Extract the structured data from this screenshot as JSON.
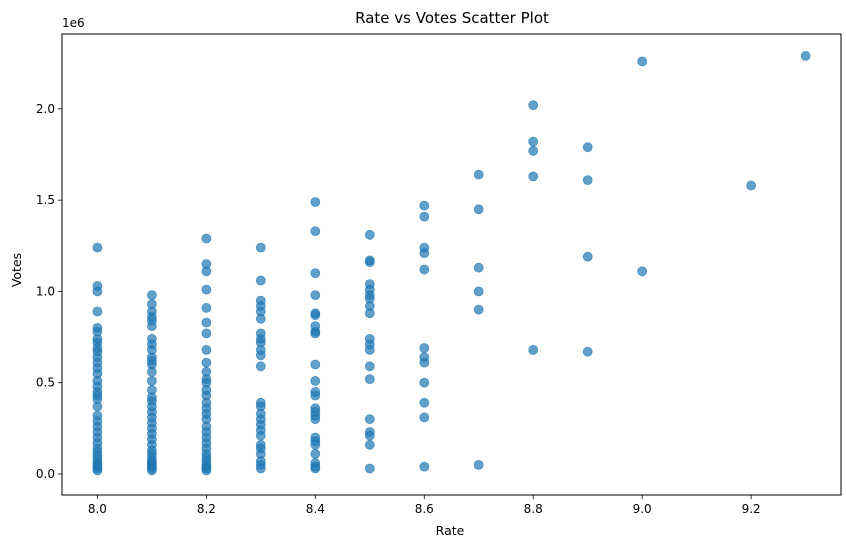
{
  "chart_data": {
    "type": "scatter",
    "title": "Rate vs Votes Scatter Plot",
    "xlabel": "Rate",
    "ylabel": "Votes",
    "y_scale_label": "1e6",
    "xlim": [
      7.935,
      9.365
    ],
    "ylim": [
      -0.115,
      2.41
    ],
    "x_ticks": [
      8.0,
      8.2,
      8.4,
      8.6,
      8.8,
      9.0,
      9.2
    ],
    "x_tick_labels": [
      "8.0",
      "8.2",
      "8.4",
      "8.6",
      "8.8",
      "9.0",
      "9.2"
    ],
    "y_ticks": [
      0.0,
      0.5,
      1.0,
      1.5,
      2.0
    ],
    "y_tick_labels": [
      "0.0",
      "0.5",
      "1.0",
      "1.5",
      "2.0"
    ],
    "grid": false,
    "marker_color": "#1f77b4",
    "marker_alpha": 0.7,
    "points": [
      [
        8.0,
        1.24
      ],
      [
        8.0,
        1.03
      ],
      [
        8.0,
        1.0
      ],
      [
        8.0,
        0.89
      ],
      [
        8.0,
        0.8
      ],
      [
        8.0,
        0.78
      ],
      [
        8.0,
        0.74
      ],
      [
        8.0,
        0.72
      ],
      [
        8.0,
        0.69
      ],
      [
        8.0,
        0.67
      ],
      [
        8.0,
        0.64
      ],
      [
        8.0,
        0.61
      ],
      [
        8.0,
        0.58
      ],
      [
        8.0,
        0.55
      ],
      [
        8.0,
        0.51
      ],
      [
        8.0,
        0.48
      ],
      [
        8.0,
        0.45
      ],
      [
        8.0,
        0.43
      ],
      [
        8.0,
        0.41
      ],
      [
        8.0,
        0.37
      ],
      [
        8.0,
        0.32
      ],
      [
        8.0,
        0.29
      ],
      [
        8.0,
        0.26
      ],
      [
        8.0,
        0.23
      ],
      [
        8.0,
        0.2
      ],
      [
        8.0,
        0.17
      ],
      [
        8.0,
        0.14
      ],
      [
        8.0,
        0.12
      ],
      [
        8.0,
        0.1
      ],
      [
        8.0,
        0.08
      ],
      [
        8.0,
        0.06
      ],
      [
        8.0,
        0.05
      ],
      [
        8.0,
        0.04
      ],
      [
        8.0,
        0.03
      ],
      [
        8.0,
        0.02
      ],
      [
        8.1,
        0.98
      ],
      [
        8.1,
        0.93
      ],
      [
        8.1,
        0.89
      ],
      [
        8.1,
        0.86
      ],
      [
        8.1,
        0.84
      ],
      [
        8.1,
        0.81
      ],
      [
        8.1,
        0.74
      ],
      [
        8.1,
        0.71
      ],
      [
        8.1,
        0.68
      ],
      [
        8.1,
        0.64
      ],
      [
        8.1,
        0.62
      ],
      [
        8.1,
        0.6
      ],
      [
        8.1,
        0.56
      ],
      [
        8.1,
        0.51
      ],
      [
        8.1,
        0.46
      ],
      [
        8.1,
        0.42
      ],
      [
        8.1,
        0.4
      ],
      [
        8.1,
        0.37
      ],
      [
        8.1,
        0.34
      ],
      [
        8.1,
        0.31
      ],
      [
        8.1,
        0.28
      ],
      [
        8.1,
        0.25
      ],
      [
        8.1,
        0.22
      ],
      [
        8.1,
        0.19
      ],
      [
        8.1,
        0.16
      ],
      [
        8.1,
        0.13
      ],
      [
        8.1,
        0.11
      ],
      [
        8.1,
        0.09
      ],
      [
        8.1,
        0.07
      ],
      [
        8.1,
        0.06
      ],
      [
        8.1,
        0.05
      ],
      [
        8.1,
        0.04
      ],
      [
        8.1,
        0.03
      ],
      [
        8.1,
        0.02
      ],
      [
        8.2,
        1.29
      ],
      [
        8.2,
        1.15
      ],
      [
        8.2,
        1.11
      ],
      [
        8.2,
        1.01
      ],
      [
        8.2,
        0.91
      ],
      [
        8.2,
        0.83
      ],
      [
        8.2,
        0.77
      ],
      [
        8.2,
        0.68
      ],
      [
        8.2,
        0.61
      ],
      [
        8.2,
        0.56
      ],
      [
        8.2,
        0.52
      ],
      [
        8.2,
        0.5
      ],
      [
        8.2,
        0.46
      ],
      [
        8.2,
        0.43
      ],
      [
        8.2,
        0.39
      ],
      [
        8.2,
        0.36
      ],
      [
        8.2,
        0.33
      ],
      [
        8.2,
        0.3
      ],
      [
        8.2,
        0.26
      ],
      [
        8.2,
        0.23
      ],
      [
        8.2,
        0.2
      ],
      [
        8.2,
        0.17
      ],
      [
        8.2,
        0.14
      ],
      [
        8.2,
        0.11
      ],
      [
        8.2,
        0.09
      ],
      [
        8.2,
        0.07
      ],
      [
        8.2,
        0.05
      ],
      [
        8.2,
        0.04
      ],
      [
        8.2,
        0.03
      ],
      [
        8.2,
        0.02
      ],
      [
        8.3,
        1.24
      ],
      [
        8.3,
        1.06
      ],
      [
        8.3,
        0.95
      ],
      [
        8.3,
        0.92
      ],
      [
        8.3,
        0.89
      ],
      [
        8.3,
        0.85
      ],
      [
        8.3,
        0.77
      ],
      [
        8.3,
        0.74
      ],
      [
        8.3,
        0.72
      ],
      [
        8.3,
        0.68
      ],
      [
        8.3,
        0.65
      ],
      [
        8.3,
        0.59
      ],
      [
        8.3,
        0.39
      ],
      [
        8.3,
        0.37
      ],
      [
        8.3,
        0.33
      ],
      [
        8.3,
        0.3
      ],
      [
        8.3,
        0.27
      ],
      [
        8.3,
        0.24
      ],
      [
        8.3,
        0.21
      ],
      [
        8.3,
        0.16
      ],
      [
        8.3,
        0.14
      ],
      [
        8.3,
        0.11
      ],
      [
        8.3,
        0.07
      ],
      [
        8.3,
        0.05
      ],
      [
        8.3,
        0.03
      ],
      [
        8.4,
        1.49
      ],
      [
        8.4,
        1.33
      ],
      [
        8.4,
        1.1
      ],
      [
        8.4,
        0.98
      ],
      [
        8.4,
        0.88
      ],
      [
        8.4,
        0.87
      ],
      [
        8.4,
        0.81
      ],
      [
        8.4,
        0.78
      ],
      [
        8.4,
        0.77
      ],
      [
        8.4,
        0.6
      ],
      [
        8.4,
        0.51
      ],
      [
        8.4,
        0.45
      ],
      [
        8.4,
        0.43
      ],
      [
        8.4,
        0.36
      ],
      [
        8.4,
        0.34
      ],
      [
        8.4,
        0.32
      ],
      [
        8.4,
        0.3
      ],
      [
        8.4,
        0.2
      ],
      [
        8.4,
        0.18
      ],
      [
        8.4,
        0.16
      ],
      [
        8.4,
        0.11
      ],
      [
        8.4,
        0.06
      ],
      [
        8.4,
        0.04
      ],
      [
        8.4,
        0.03
      ],
      [
        8.5,
        1.31
      ],
      [
        8.5,
        1.17
      ],
      [
        8.5,
        1.16
      ],
      [
        8.5,
        1.04
      ],
      [
        8.5,
        1.01
      ],
      [
        8.5,
        0.98
      ],
      [
        8.5,
        0.96
      ],
      [
        8.5,
        0.92
      ],
      [
        8.5,
        0.88
      ],
      [
        8.5,
        0.74
      ],
      [
        8.5,
        0.71
      ],
      [
        8.5,
        0.68
      ],
      [
        8.5,
        0.59
      ],
      [
        8.5,
        0.52
      ],
      [
        8.5,
        0.3
      ],
      [
        8.5,
        0.23
      ],
      [
        8.5,
        0.21
      ],
      [
        8.5,
        0.16
      ],
      [
        8.5,
        0.03
      ],
      [
        8.6,
        1.47
      ],
      [
        8.6,
        1.41
      ],
      [
        8.6,
        1.24
      ],
      [
        8.6,
        1.21
      ],
      [
        8.6,
        1.12
      ],
      [
        8.6,
        0.69
      ],
      [
        8.6,
        0.64
      ],
      [
        8.6,
        0.61
      ],
      [
        8.6,
        0.5
      ],
      [
        8.6,
        0.39
      ],
      [
        8.6,
        0.31
      ],
      [
        8.6,
        0.04
      ],
      [
        8.7,
        1.64
      ],
      [
        8.7,
        1.45
      ],
      [
        8.7,
        1.13
      ],
      [
        8.7,
        1.0
      ],
      [
        8.7,
        0.9
      ],
      [
        8.7,
        0.05
      ],
      [
        8.8,
        2.02
      ],
      [
        8.8,
        1.82
      ],
      [
        8.8,
        1.77
      ],
      [
        8.8,
        1.63
      ],
      [
        8.8,
        0.68
      ],
      [
        8.9,
        1.79
      ],
      [
        8.9,
        1.61
      ],
      [
        8.9,
        1.19
      ],
      [
        8.9,
        0.67
      ],
      [
        9.0,
        2.26
      ],
      [
        9.0,
        1.11
      ],
      [
        9.2,
        1.58
      ],
      [
        9.3,
        2.29
      ]
    ]
  }
}
